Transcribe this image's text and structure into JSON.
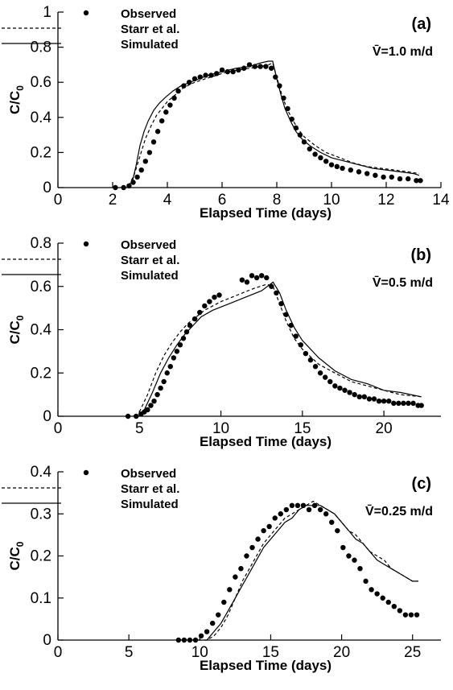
{
  "chart_data": [
    {
      "type": "line",
      "panel_label": "(a)",
      "velocity_label": "V̄=1.0 m/d",
      "xlabel": "Elapsed Time (days)",
      "ylabel": "C/C",
      "ylabel_sub": "0",
      "xlim": [
        0,
        14
      ],
      "ylim": [
        0,
        1
      ],
      "xticks": [
        0,
        2,
        4,
        6,
        8,
        10,
        12,
        14
      ],
      "yticks": [
        0,
        0.2,
        0.4,
        0.6,
        0.8,
        1
      ],
      "ytick_labels": [
        "0",
        "0.2",
        "0.4",
        "0.6",
        "0.8",
        "1"
      ],
      "legend": {
        "position": "top-left",
        "entries": [
          "Observed",
          "Starr et al.",
          "Simulated"
        ]
      },
      "series": [
        {
          "name": "Observed",
          "style": "markers",
          "x": [
            2.1,
            2.4,
            2.6,
            2.75,
            2.9,
            3.05,
            3.2,
            3.35,
            3.5,
            3.65,
            3.8,
            3.95,
            4.1,
            4.25,
            4.4,
            4.6,
            4.8,
            5.0,
            5.2,
            5.4,
            5.6,
            5.8,
            6.0,
            6.2,
            6.4,
            6.6,
            6.8,
            7.0,
            7.2,
            7.4,
            7.6,
            7.8,
            7.95,
            8.1,
            8.25,
            8.4,
            8.55,
            8.7,
            8.85,
            9.0,
            9.2,
            9.4,
            9.6,
            9.8,
            10.0,
            10.2,
            10.4,
            10.7,
            11.0,
            11.3,
            11.6,
            11.9,
            12.2,
            12.5,
            12.8,
            13.1,
            13.25
          ],
          "y": [
            0.0,
            0.0,
            0.01,
            0.03,
            0.06,
            0.1,
            0.15,
            0.2,
            0.26,
            0.32,
            0.38,
            0.43,
            0.47,
            0.51,
            0.55,
            0.58,
            0.6,
            0.62,
            0.63,
            0.64,
            0.64,
            0.65,
            0.67,
            0.66,
            0.66,
            0.67,
            0.68,
            0.7,
            0.69,
            0.69,
            0.69,
            0.68,
            0.63,
            0.58,
            0.51,
            0.45,
            0.39,
            0.34,
            0.3,
            0.26,
            0.22,
            0.19,
            0.17,
            0.15,
            0.13,
            0.12,
            0.11,
            0.1,
            0.09,
            0.08,
            0.07,
            0.06,
            0.06,
            0.05,
            0.05,
            0.04,
            0.04
          ]
        },
        {
          "name": "Starr et al.",
          "style": "dashed",
          "x": [
            2.6,
            2.8,
            3.0,
            3.2,
            3.4,
            3.6,
            3.8,
            4.0,
            4.3,
            4.6,
            5.0,
            5.4,
            5.8,
            6.2,
            6.6,
            7.0,
            7.4,
            7.7,
            7.85,
            8.0,
            8.2,
            8.4,
            8.6,
            8.8,
            9.0,
            9.4,
            9.8,
            10.3,
            10.8,
            11.3,
            11.8,
            12.3,
            12.8,
            13.2
          ],
          "y": [
            0.01,
            0.08,
            0.18,
            0.28,
            0.35,
            0.41,
            0.45,
            0.49,
            0.53,
            0.57,
            0.6,
            0.62,
            0.64,
            0.66,
            0.67,
            0.68,
            0.69,
            0.7,
            0.71,
            0.63,
            0.52,
            0.44,
            0.38,
            0.33,
            0.29,
            0.24,
            0.2,
            0.17,
            0.14,
            0.12,
            0.11,
            0.1,
            0.09,
            0.08
          ]
        },
        {
          "name": "Simulated",
          "style": "solid",
          "x": [
            2.7,
            2.85,
            3.0,
            3.15,
            3.3,
            3.5,
            3.7,
            3.9,
            4.2,
            4.5,
            5.0,
            5.5,
            6.0,
            6.5,
            7.0,
            7.4,
            7.7,
            7.85,
            8.0,
            8.15,
            8.3,
            8.5,
            8.7,
            8.9,
            9.2,
            9.6,
            10.0,
            10.5,
            11.0,
            11.5,
            12.0,
            12.5,
            13.0,
            13.2
          ],
          "y": [
            0.02,
            0.12,
            0.24,
            0.32,
            0.38,
            0.44,
            0.48,
            0.51,
            0.55,
            0.58,
            0.61,
            0.64,
            0.66,
            0.68,
            0.69,
            0.71,
            0.72,
            0.72,
            0.62,
            0.53,
            0.45,
            0.38,
            0.32,
            0.28,
            0.24,
            0.2,
            0.17,
            0.15,
            0.13,
            0.11,
            0.1,
            0.09,
            0.08,
            0.07
          ]
        }
      ]
    },
    {
      "type": "line",
      "panel_label": "(b)",
      "velocity_label": "V̄=0.5 m/d",
      "xlabel": "Elapsed Time (days)",
      "ylabel": "C/C",
      "ylabel_sub": "0",
      "xlim": [
        0,
        23.5
      ],
      "ylim": [
        0,
        0.8
      ],
      "xticks": [
        0,
        5,
        10,
        15,
        20
      ],
      "yticks": [
        0,
        0.2,
        0.4,
        0.6,
        0.8
      ],
      "ytick_labels": [
        "0",
        "0.2",
        "0.4",
        "0.6",
        "0.8"
      ],
      "legend": {
        "position": "top-left",
        "entries": [
          "Observed",
          "Starr et al.",
          "Simulated"
        ]
      },
      "series": [
        {
          "name": "Observed",
          "style": "markers",
          "x": [
            4.3,
            4.8,
            5.1,
            5.3,
            5.5,
            5.7,
            5.9,
            6.1,
            6.3,
            6.5,
            6.7,
            6.9,
            7.1,
            7.3,
            7.5,
            7.7,
            7.9,
            8.1,
            8.4,
            8.7,
            9.0,
            9.3,
            9.6,
            9.9,
            11.3,
            11.6,
            11.9,
            12.2,
            12.5,
            12.8,
            13.1,
            13.4,
            13.7,
            14.0,
            14.3,
            14.6,
            14.9,
            15.2,
            15.5,
            15.8,
            16.1,
            16.4,
            16.7,
            17.0,
            17.3,
            17.6,
            17.9,
            18.2,
            18.5,
            18.8,
            19.1,
            19.4,
            19.7,
            20.0,
            20.3,
            20.6,
            20.9,
            21.2,
            21.5,
            21.8,
            22.1,
            22.3
          ],
          "y": [
            0.0,
            0.0,
            0.01,
            0.02,
            0.03,
            0.05,
            0.07,
            0.1,
            0.13,
            0.16,
            0.2,
            0.23,
            0.27,
            0.3,
            0.33,
            0.36,
            0.39,
            0.42,
            0.45,
            0.48,
            0.51,
            0.53,
            0.55,
            0.56,
            0.63,
            0.62,
            0.65,
            0.64,
            0.65,
            0.64,
            0.6,
            0.57,
            0.52,
            0.47,
            0.42,
            0.37,
            0.33,
            0.29,
            0.26,
            0.23,
            0.2,
            0.18,
            0.16,
            0.14,
            0.13,
            0.12,
            0.11,
            0.1,
            0.09,
            0.09,
            0.08,
            0.08,
            0.07,
            0.07,
            0.07,
            0.06,
            0.06,
            0.06,
            0.06,
            0.06,
            0.05,
            0.05
          ]
        },
        {
          "name": "Starr et al.",
          "style": "dashed",
          "x": [
            5.0,
            5.5,
            6.0,
            6.5,
            7.0,
            7.5,
            8.0,
            8.5,
            9.0,
            10.0,
            11.0,
            12.0,
            12.8,
            13.2,
            13.6,
            14.0,
            14.5,
            15.0,
            16.0,
            17.0,
            18.0,
            19.0,
            20.0,
            21.0,
            22.3
          ],
          "y": [
            0.02,
            0.1,
            0.2,
            0.28,
            0.34,
            0.39,
            0.43,
            0.46,
            0.49,
            0.53,
            0.56,
            0.59,
            0.61,
            0.6,
            0.52,
            0.44,
            0.36,
            0.31,
            0.24,
            0.2,
            0.16,
            0.14,
            0.12,
            0.1,
            0.09
          ]
        },
        {
          "name": "Simulated",
          "style": "solid",
          "x": [
            5.3,
            5.8,
            6.3,
            6.8,
            7.3,
            7.8,
            8.3,
            8.8,
            9.5,
            10.5,
            11.5,
            12.5,
            13.2,
            13.6,
            14.0,
            14.5,
            15.0,
            16.0,
            17.0,
            18.0,
            19.0,
            20.0,
            21.0,
            22.3
          ],
          "y": [
            0.03,
            0.11,
            0.2,
            0.27,
            0.33,
            0.38,
            0.42,
            0.46,
            0.49,
            0.52,
            0.55,
            0.58,
            0.62,
            0.57,
            0.49,
            0.41,
            0.35,
            0.27,
            0.21,
            0.17,
            0.15,
            0.12,
            0.11,
            0.09
          ]
        }
      ]
    },
    {
      "type": "line",
      "panel_label": "(c)",
      "velocity_label": "V̄=0.25 m/d",
      "xlabel": "Elapsed Time (days)",
      "ylabel": "C/C",
      "ylabel_sub": "0",
      "xlim": [
        0,
        27
      ],
      "ylim": [
        0,
        0.4
      ],
      "xticks": [
        0,
        5,
        10,
        15,
        20,
        25
      ],
      "yticks": [
        0,
        0.1,
        0.2,
        0.3,
        0.4
      ],
      "ytick_labels": [
        "0",
        "0.1",
        "0.2",
        "0.3",
        "0.4"
      ],
      "legend": {
        "position": "top-left",
        "entries": [
          "Observed",
          "Starr et al.",
          "Simulated"
        ]
      },
      "series": [
        {
          "name": "Observed",
          "style": "markers",
          "x": [
            8.5,
            8.9,
            9.3,
            9.7,
            10.1,
            10.5,
            10.9,
            11.3,
            11.7,
            12.1,
            12.5,
            12.9,
            13.3,
            13.7,
            14.1,
            14.5,
            14.9,
            15.3,
            15.7,
            16.1,
            16.5,
            16.9,
            17.3,
            17.7,
            18.1,
            18.5,
            18.9,
            19.3,
            19.7,
            20.1,
            20.5,
            20.9,
            21.3,
            21.7,
            22.1,
            22.5,
            22.9,
            23.3,
            23.7,
            24.1,
            24.5,
            24.9,
            25.3
          ],
          "y": [
            0.0,
            0.0,
            0.0,
            0.0,
            0.01,
            0.02,
            0.04,
            0.06,
            0.09,
            0.12,
            0.15,
            0.17,
            0.2,
            0.22,
            0.24,
            0.26,
            0.27,
            0.29,
            0.3,
            0.31,
            0.32,
            0.32,
            0.32,
            0.31,
            0.32,
            0.31,
            0.3,
            0.28,
            0.26,
            0.22,
            0.2,
            0.19,
            0.17,
            0.14,
            0.12,
            0.11,
            0.1,
            0.09,
            0.08,
            0.07,
            0.06,
            0.06,
            0.06
          ]
        },
        {
          "name": "Starr et al.",
          "style": "dashed",
          "x": [
            9.5,
            10.0,
            10.5,
            11.0,
            11.5,
            12.0,
            12.5,
            13.0,
            13.5,
            14.0,
            14.5,
            15.0,
            15.5,
            16.0,
            16.5,
            17.0,
            17.5,
            18.0,
            18.5,
            19.0,
            19.5,
            20.0,
            20.5,
            21.0,
            21.5,
            22.0,
            22.5,
            23.0,
            23.5,
            24.0,
            24.5,
            25.0,
            25.4
          ],
          "y": [
            0.0,
            0.0,
            0.0,
            0.01,
            0.03,
            0.06,
            0.1,
            0.14,
            0.17,
            0.2,
            0.23,
            0.25,
            0.27,
            0.29,
            0.3,
            0.31,
            0.32,
            0.33,
            0.32,
            0.31,
            0.3,
            0.28,
            0.26,
            0.25,
            0.23,
            0.21,
            0.2,
            0.19,
            0.17,
            0.16,
            0.15,
            0.14,
            0.14
          ]
        },
        {
          "name": "Simulated",
          "style": "solid",
          "x": [
            10.5,
            11.0,
            11.5,
            12.0,
            12.5,
            13.0,
            13.5,
            14.0,
            14.5,
            15.0,
            15.5,
            16.0,
            16.5,
            17.0,
            17.5,
            18.0,
            18.5,
            19.0,
            19.5,
            20.0,
            20.5,
            21.0,
            21.5,
            22.0,
            22.5,
            23.0,
            23.5,
            24.0,
            24.5,
            25.0,
            25.4
          ],
          "y": [
            0.0,
            0.02,
            0.04,
            0.07,
            0.1,
            0.13,
            0.16,
            0.19,
            0.22,
            0.24,
            0.26,
            0.28,
            0.29,
            0.31,
            0.32,
            0.32,
            0.32,
            0.31,
            0.3,
            0.28,
            0.26,
            0.24,
            0.23,
            0.21,
            0.19,
            0.18,
            0.17,
            0.16,
            0.15,
            0.14,
            0.14
          ]
        }
      ]
    }
  ]
}
